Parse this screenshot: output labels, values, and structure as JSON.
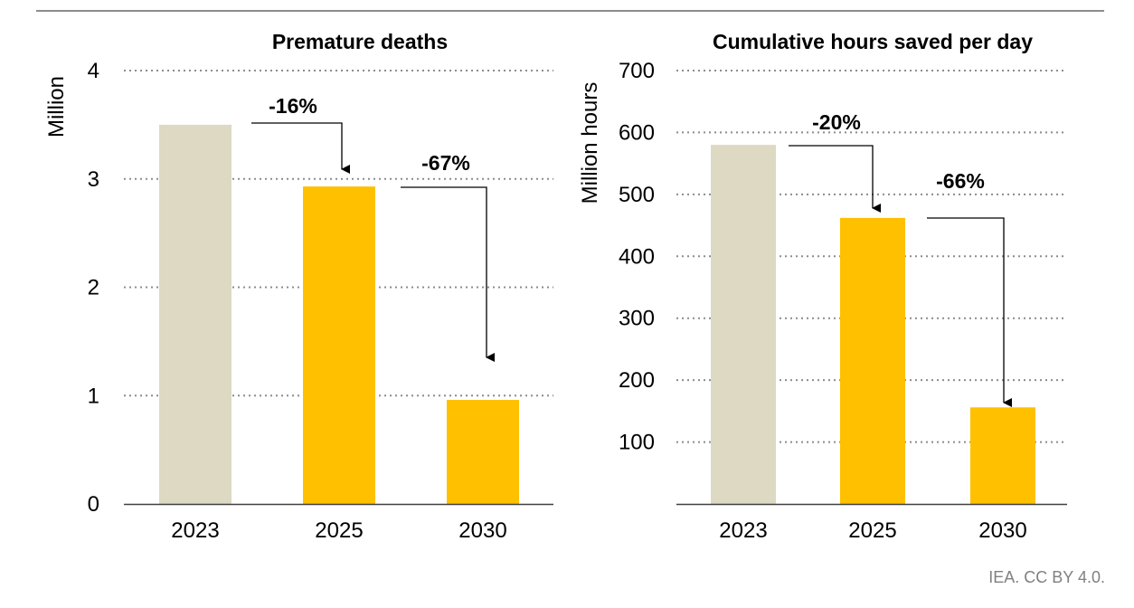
{
  "colors": {
    "base": "#DDD9C3",
    "highlight": "#FFC000",
    "grid": "#8c8c8c",
    "axis": "#404040",
    "credit": "#808080"
  },
  "credit": "IEA. CC BY 4.0.",
  "chart_data": [
    {
      "type": "bar",
      "title": "Premature deaths",
      "ylabel": "Million",
      "xlabel": "",
      "categories": [
        "2023",
        "2025",
        "2030"
      ],
      "values": [
        3.5,
        2.93,
        0.96
      ],
      "bar_colors": [
        "#DDD9C3",
        "#FFC000",
        "#FFC000"
      ],
      "ylim": [
        0,
        4
      ],
      "yticks": [
        0,
        1,
        2,
        3,
        4
      ],
      "grid": true,
      "annotations": [
        {
          "text": "-16%",
          "from": "2023",
          "to": "2025"
        },
        {
          "text": "-67%",
          "from": "2025",
          "to": "2030"
        }
      ]
    },
    {
      "type": "bar",
      "title": "Cumulative hours saved per day",
      "ylabel": "Million hours",
      "xlabel": "",
      "categories": [
        "2023",
        "2025",
        "2030"
      ],
      "values": [
        580,
        462,
        156
      ],
      "bar_colors": [
        "#DDD9C3",
        "#FFC000",
        "#FFC000"
      ],
      "ylim": [
        0,
        700
      ],
      "yticks": [
        100,
        200,
        300,
        400,
        500,
        600,
        700
      ],
      "grid": true,
      "annotations": [
        {
          "text": "-20%",
          "from": "2023",
          "to": "2025"
        },
        {
          "text": "-66%",
          "from": "2025",
          "to": "2030"
        }
      ]
    }
  ]
}
